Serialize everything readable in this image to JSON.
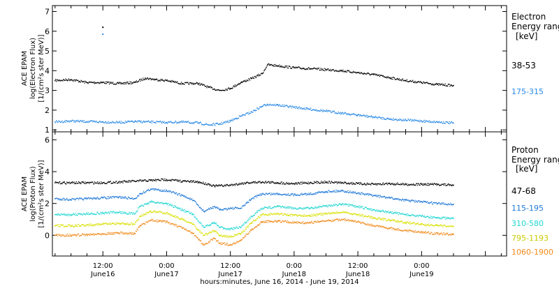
{
  "colors": {
    "background": "#ffffff",
    "axes": "#000000",
    "black_series": "#000000",
    "blue_dark": "#1f78d8",
    "blue_light": "#2a8ae6",
    "cyan": "#22d6d0",
    "yellow": "#d8e000",
    "orange": "#f08a1a"
  },
  "x_axis": {
    "title": "hours:minutes, June 16, 2014 - June 19, 2014",
    "tick_labels": [
      {
        "x": 12,
        "time": "12:00",
        "date": "June16"
      },
      {
        "x": 24,
        "time": "0:00",
        "date": "June17"
      },
      {
        "x": 36,
        "time": "12:00",
        "date": "June17"
      },
      {
        "x": 48,
        "time": "0:00",
        "date": "June18"
      },
      {
        "x": 60,
        "time": "12:00",
        "date": "June18"
      },
      {
        "x": 72,
        "time": "0:00",
        "date": "June19"
      }
    ]
  },
  "chart_data": [
    {
      "type": "scatter",
      "panel": "electron",
      "ylabel_lines": [
        "ACE EPAM",
        "log(Electron Flux)",
        "[1/(cm²s ster MeV)]"
      ],
      "xlim": [
        2.5,
        88
      ],
      "ylim": [
        0.9,
        7.3
      ],
      "yticks": [
        1,
        2,
        3,
        4,
        5,
        6,
        7
      ],
      "right_title": [
        "Electron",
        "Energy ranges",
        "[keV]"
      ],
      "series": [
        {
          "name": "38-53",
          "color": "#000000",
          "x": [
            3,
            6,
            9,
            12,
            15,
            18,
            20,
            22,
            24,
            27,
            30,
            32,
            34,
            36,
            38,
            40,
            42,
            43,
            45,
            48,
            51,
            54,
            57,
            60,
            63,
            66,
            69,
            72,
            75,
            78
          ],
          "y": [
            3.5,
            3.55,
            3.4,
            3.4,
            3.35,
            3.4,
            3.62,
            3.55,
            3.5,
            3.35,
            3.35,
            3.15,
            3.0,
            3.1,
            3.4,
            3.6,
            3.85,
            4.3,
            4.25,
            4.15,
            4.1,
            4.05,
            4.0,
            3.9,
            3.8,
            3.65,
            3.5,
            3.4,
            3.3,
            3.25
          ],
          "outliers": [
            [
              12,
              6.2
            ]
          ]
        },
        {
          "name": "175-315",
          "color": "#2a8ae6",
          "x": [
            3,
            6,
            9,
            12,
            15,
            18,
            21,
            24,
            27,
            30,
            32,
            34,
            36,
            38,
            40,
            42,
            43,
            45,
            48,
            51,
            54,
            57,
            60,
            63,
            66,
            69,
            72,
            75,
            78
          ],
          "y": [
            1.4,
            1.45,
            1.42,
            1.4,
            1.38,
            1.42,
            1.4,
            1.38,
            1.4,
            1.35,
            1.25,
            1.3,
            1.45,
            1.7,
            1.9,
            2.2,
            2.3,
            2.25,
            2.15,
            2.05,
            1.95,
            1.85,
            1.75,
            1.65,
            1.55,
            1.5,
            1.45,
            1.4,
            1.35
          ],
          "outliers": [
            [
              12,
              5.85
            ]
          ]
        }
      ]
    },
    {
      "type": "scatter",
      "panel": "proton",
      "ylabel_lines": [
        "ACE EPAM",
        "log(Proton Flux)",
        "[1/(cm²s ster MeV)]"
      ],
      "xlim": [
        2.5,
        88
      ],
      "ylim": [
        -1.3,
        6.5
      ],
      "yticks": [
        0,
        2,
        4,
        6
      ],
      "right_title": [
        "Proton",
        "Energy ranges",
        "[keV]"
      ],
      "series": [
        {
          "name": "47-68",
          "color": "#000000",
          "x": [
            3,
            6,
            9,
            12,
            15,
            18,
            21,
            24,
            27,
            30,
            32,
            33,
            36,
            39,
            42,
            45,
            48,
            51,
            54,
            57,
            60,
            63,
            66,
            69,
            72,
            75,
            78
          ],
          "y": [
            3.3,
            3.3,
            3.3,
            3.3,
            3.35,
            3.4,
            3.45,
            3.5,
            3.4,
            3.35,
            3.2,
            3.1,
            3.15,
            3.3,
            3.35,
            3.3,
            3.25,
            3.3,
            3.35,
            3.3,
            3.25,
            3.2,
            3.25,
            3.2,
            3.2,
            3.2,
            3.15
          ]
        },
        {
          "name": "115-195",
          "color": "#1f78d8",
          "x": [
            3,
            6,
            9,
            12,
            15,
            18,
            19,
            21,
            24,
            27,
            29,
            31,
            33,
            34,
            36,
            38,
            40,
            42,
            45,
            48,
            51,
            54,
            57,
            60,
            63,
            66,
            69,
            72,
            75,
            78
          ],
          "y": [
            2.3,
            2.25,
            2.3,
            2.35,
            2.4,
            2.3,
            2.6,
            2.9,
            2.8,
            2.5,
            2.2,
            1.5,
            1.8,
            1.6,
            1.7,
            1.7,
            2.3,
            2.6,
            2.6,
            2.55,
            2.6,
            2.75,
            2.8,
            2.65,
            2.5,
            2.35,
            2.2,
            2.1,
            2.0,
            1.95
          ]
        },
        {
          "name": "310-580",
          "color": "#22d6d0",
          "x": [
            3,
            6,
            9,
            12,
            15,
            18,
            19,
            21,
            24,
            27,
            29,
            31,
            33,
            34,
            36,
            38,
            40,
            42,
            45,
            48,
            51,
            54,
            57,
            60,
            63,
            66,
            69,
            72,
            75,
            78
          ],
          "y": [
            1.3,
            1.3,
            1.35,
            1.4,
            1.45,
            1.35,
            1.8,
            2.1,
            2.0,
            1.6,
            1.3,
            0.5,
            0.8,
            0.5,
            0.4,
            0.5,
            1.2,
            1.7,
            1.8,
            1.7,
            1.7,
            1.85,
            1.95,
            1.8,
            1.6,
            1.45,
            1.3,
            1.2,
            1.1,
            1.05
          ]
        },
        {
          "name": "795-1193",
          "color": "#d8e000",
          "x": [
            3,
            6,
            9,
            12,
            15,
            18,
            19,
            21,
            24,
            27,
            29,
            31,
            33,
            34,
            36,
            38,
            40,
            42,
            45,
            48,
            51,
            54,
            57,
            60,
            63,
            66,
            69,
            72,
            75,
            78
          ],
          "y": [
            0.6,
            0.6,
            0.65,
            0.7,
            0.75,
            0.7,
            1.2,
            1.5,
            1.4,
            1.0,
            0.7,
            0.0,
            0.3,
            0.0,
            -0.1,
            0.1,
            0.8,
            1.3,
            1.35,
            1.25,
            1.25,
            1.35,
            1.45,
            1.3,
            1.1,
            0.95,
            0.8,
            0.7,
            0.6,
            0.55
          ]
        },
        {
          "name": "1060-1900",
          "color": "#f08a1a",
          "x": [
            3,
            6,
            9,
            12,
            15,
            18,
            19,
            21,
            24,
            27,
            29,
            31,
            33,
            34,
            36,
            38,
            40,
            42,
            45,
            48,
            51,
            54,
            57,
            60,
            63,
            66,
            69,
            72,
            75,
            78
          ],
          "y": [
            0.0,
            0.0,
            0.05,
            0.1,
            0.15,
            0.1,
            0.6,
            0.95,
            0.85,
            0.45,
            0.1,
            -0.6,
            -0.2,
            -0.5,
            -0.6,
            -0.3,
            0.35,
            0.85,
            0.9,
            0.8,
            0.8,
            0.9,
            1.0,
            0.85,
            0.6,
            0.45,
            0.3,
            0.2,
            0.1,
            0.05
          ]
        }
      ]
    }
  ]
}
